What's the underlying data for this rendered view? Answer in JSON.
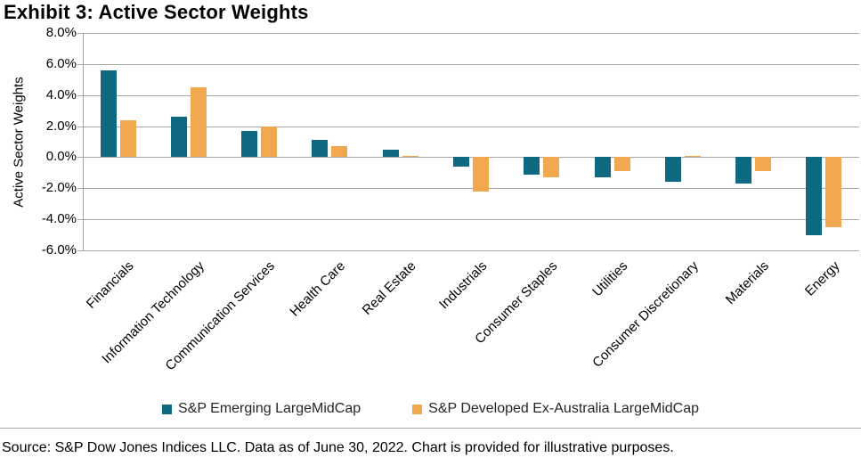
{
  "title": "Exhibit 3: Active Sector Weights",
  "source_note": "Source: S&P Dow Jones Indices LLC. Data as of June 30, 2022. Chart is provided for illustrative purposes.",
  "colors": {
    "emerging_teal": "#0f6a81",
    "developed_orange": "#f0a74d",
    "gridline_gray": "#a6a6a6",
    "text_black": "#000000"
  },
  "chart_data": {
    "type": "bar",
    "title": "Exhibit 3: Active Sector Weights",
    "xlabel": "",
    "ylabel": "Active Sector Weights",
    "ylim": [
      -6,
      8
    ],
    "yticks": [
      8,
      6,
      4,
      2,
      0,
      -2,
      -4,
      -6
    ],
    "ytick_labels": [
      "8.0%",
      "6.0%",
      "4.0%",
      "2.0%",
      "0.0%",
      "-2.0%",
      "-4.0%",
      "-6.0%"
    ],
    "grid": true,
    "legend_position": "bottom",
    "categories": [
      "Financials",
      "Information Technology",
      "Communication Services",
      "Health Care",
      "Real Estate",
      "Industrials",
      "Consumer Staples",
      "Utilities",
      "Consumer Discretionary",
      "Materials",
      "Energy"
    ],
    "series": [
      {
        "name": "S&P Emerging LargeMidCap",
        "color": "#0f6a81",
        "values": [
          5.6,
          2.6,
          1.7,
          1.1,
          0.5,
          -0.6,
          -1.1,
          -1.3,
          -1.6,
          -1.7,
          -5.0
        ]
      },
      {
        "name": "S&P Developed Ex-Australia LargeMidCap",
        "color": "#f0a74d",
        "values": [
          2.4,
          4.5,
          2.0,
          0.7,
          0.1,
          -2.2,
          -1.3,
          -0.9,
          0.1,
          -0.9,
          -4.5
        ]
      }
    ]
  }
}
